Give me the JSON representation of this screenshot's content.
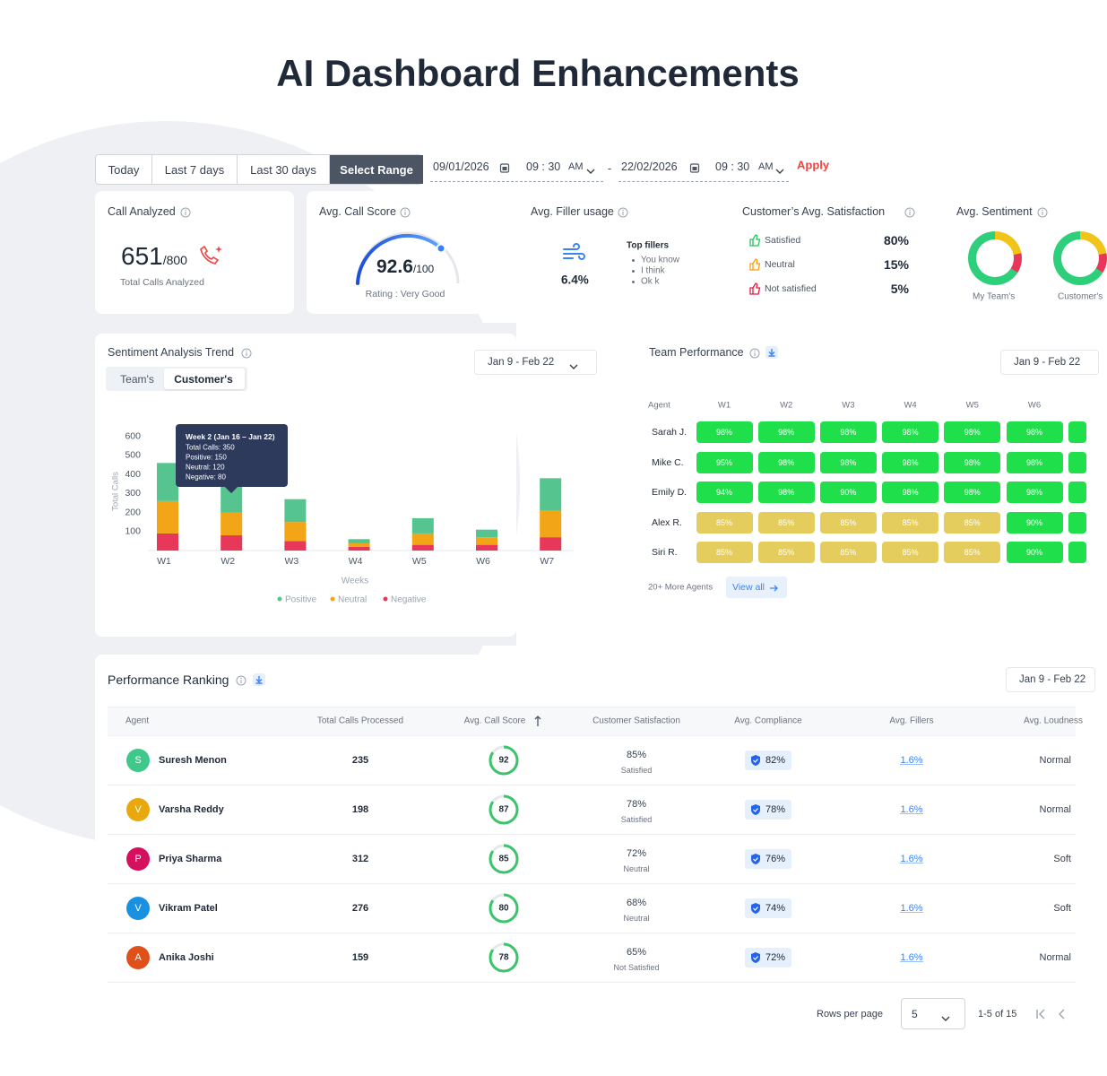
{
  "header": {
    "title": "AI Dashboard Enhancements"
  },
  "filters": {
    "ranges": [
      "Today",
      "Last 7 days",
      "Last 30 days",
      "Select Range"
    ],
    "selected_index": 3,
    "start_date": "09/01/2026",
    "start_time": "09 : 30",
    "start_ampm": "AM",
    "separator": "-",
    "end_date": "22/02/2026",
    "end_time": "09 : 30",
    "end_ampm": "AM",
    "apply": "Apply"
  },
  "cards": {
    "calls": {
      "title": "Call Analyzed",
      "value": "651",
      "total": "/800",
      "caption": "Total Calls Analyzed"
    },
    "score": {
      "title": "Avg. Call Score",
      "value": "92.6",
      "total": "/100",
      "caption": "Rating : Very Good"
    },
    "filler": {
      "title": "Avg. Filler usage",
      "value": "6.4%",
      "top_title": "Top fillers",
      "top": [
        "You know",
        "I think",
        "Ok k"
      ]
    },
    "satisfaction": {
      "title": "Customer’s Avg. Satisfaction",
      "rows": [
        {
          "label": "Satisfied",
          "value": "80%",
          "color": "#22c55e"
        },
        {
          "label": "Neutral",
          "value": "15%",
          "color": "#f59e0b"
        },
        {
          "label": "Not satisfied",
          "value": "5%",
          "color": "#e11d48"
        }
      ]
    },
    "sentiment": {
      "title": "Avg. Sentiment",
      "donuts": [
        "My Team's",
        "Customer's"
      ]
    }
  },
  "trend": {
    "title": "Sentiment Analysis Trend",
    "tabs": [
      "Team's",
      "Customer's"
    ],
    "selected_index": 1,
    "range": "Jan 9 - Feb 22",
    "chart": {
      "type": "bar",
      "stacked": true,
      "y_label": "Total Calls",
      "x_label": "Weeks",
      "categories": [
        "W1",
        "W2",
        "W3",
        "W4",
        "W5",
        "W6",
        "W7"
      ],
      "series": [
        {
          "name": "Positive",
          "color": "#55c48f",
          "values": [
            200,
            150,
            120,
            20,
            80,
            40,
            170
          ]
        },
        {
          "name": "Neutral",
          "color": "#f2a516",
          "values": [
            170,
            120,
            100,
            20,
            60,
            40,
            140
          ]
        },
        {
          "name": "Negative",
          "color": "#e8385a",
          "values": [
            90,
            80,
            50,
            20,
            30,
            30,
            70
          ]
        }
      ],
      "ylim": [
        0,
        650
      ],
      "yticks": [
        100,
        200,
        300,
        400,
        500,
        600
      ],
      "grid": false
    },
    "tooltip": {
      "title": "Week 2 (Jan 16 – Jan 22)",
      "lines": [
        "Total Calls: 350",
        "Positive: 150",
        "Neutral: 120",
        "Negative: 80"
      ]
    }
  },
  "team": {
    "title": "Team Performance",
    "range": "Jan 9 - Feb 22",
    "columns": [
      "Agent",
      "W1",
      "W2",
      "W3",
      "W4",
      "W5",
      "W6"
    ],
    "rows": [
      {
        "agent": "Sarah J.",
        "cells": [
          "98%",
          "98%",
          "98%",
          "98%",
          "98%",
          "98%"
        ],
        "colors": [
          "#1fe04b",
          "#1fe04b",
          "#1fe04b",
          "#1fe04b",
          "#1fe04b",
          "#1fe04b"
        ]
      },
      {
        "agent": "Mike C.",
        "cells": [
          "95%",
          "98%",
          "98%",
          "98%",
          "98%",
          "98%"
        ],
        "colors": [
          "#1fe04b",
          "#1fe04b",
          "#1fe04b",
          "#1fe04b",
          "#1fe04b",
          "#1fe04b"
        ]
      },
      {
        "agent": "Emily D.",
        "cells": [
          "94%",
          "98%",
          "90%",
          "98%",
          "98%",
          "98%"
        ],
        "colors": [
          "#1fe04b",
          "#1fe04b",
          "#1fe04b",
          "#1fe04b",
          "#1fe04b",
          "#1fe04b"
        ]
      },
      {
        "agent": "Alex R.",
        "cells": [
          "85%",
          "85%",
          "85%",
          "85%",
          "85%",
          "90%"
        ],
        "colors": [
          "#e4cd5c",
          "#e4cd5c",
          "#e4cd5c",
          "#e4cd5c",
          "#e4cd5c",
          "#1fe04b"
        ]
      },
      {
        "agent": "Siri R.",
        "cells": [
          "85%",
          "85%",
          "85%",
          "85%",
          "85%",
          "90%"
        ],
        "colors": [
          "#e4cd5c",
          "#e4cd5c",
          "#e4cd5c",
          "#e4cd5c",
          "#e4cd5c",
          "#1fe04b"
        ]
      }
    ],
    "more": "20+ More Agents",
    "view_all": "View all"
  },
  "ranking": {
    "title": "Performance Ranking",
    "range": "Jan 9 - Feb 22",
    "columns": [
      "Agent",
      "Total Calls Processed",
      "Avg. Call Score",
      "Customer Satisfaction",
      "Avg. Compliance",
      "Avg. Fillers",
      "Avg. Loudness"
    ],
    "rows": [
      {
        "initial": "S",
        "color": "#3ec98a",
        "name": "Suresh Menon",
        "calls": 235,
        "score": 92,
        "satisfaction": "85%",
        "satisfaction_label": "Satisfied",
        "compliance": "82%",
        "fillers": "1.6%",
        "loudness": "Normal"
      },
      {
        "initial": "V",
        "color": "#e8a80e",
        "name": "Varsha Reddy",
        "calls": 198,
        "score": 87,
        "satisfaction": "78%",
        "satisfaction_label": "Satisfied",
        "compliance": "78%",
        "fillers": "1.6%",
        "loudness": "Normal"
      },
      {
        "initial": "P",
        "color": "#d6105f",
        "name": "Priya Sharma",
        "calls": 312,
        "score": 85,
        "satisfaction": "72%",
        "satisfaction_label": "Neutral",
        "compliance": "76%",
        "fillers": "1.6%",
        "loudness": "Soft"
      },
      {
        "initial": "V",
        "color": "#1a90e0",
        "name": "Vikram Patel",
        "calls": 276,
        "score": 80,
        "satisfaction": "68%",
        "satisfaction_label": "Neutral",
        "compliance": "74%",
        "fillers": "1.6%",
        "loudness": "Soft"
      },
      {
        "initial": "A",
        "color": "#e0501a",
        "name": "Anika Joshi",
        "calls": 159,
        "score": 78,
        "satisfaction": "65%",
        "satisfaction_label": "Not Satisfied",
        "compliance": "72%",
        "fillers": "1.6%",
        "loudness": "Normal"
      }
    ],
    "pagination": {
      "rows_label": "Rows per page",
      "rows_value": "5",
      "range": "1-5 of 15"
    }
  }
}
